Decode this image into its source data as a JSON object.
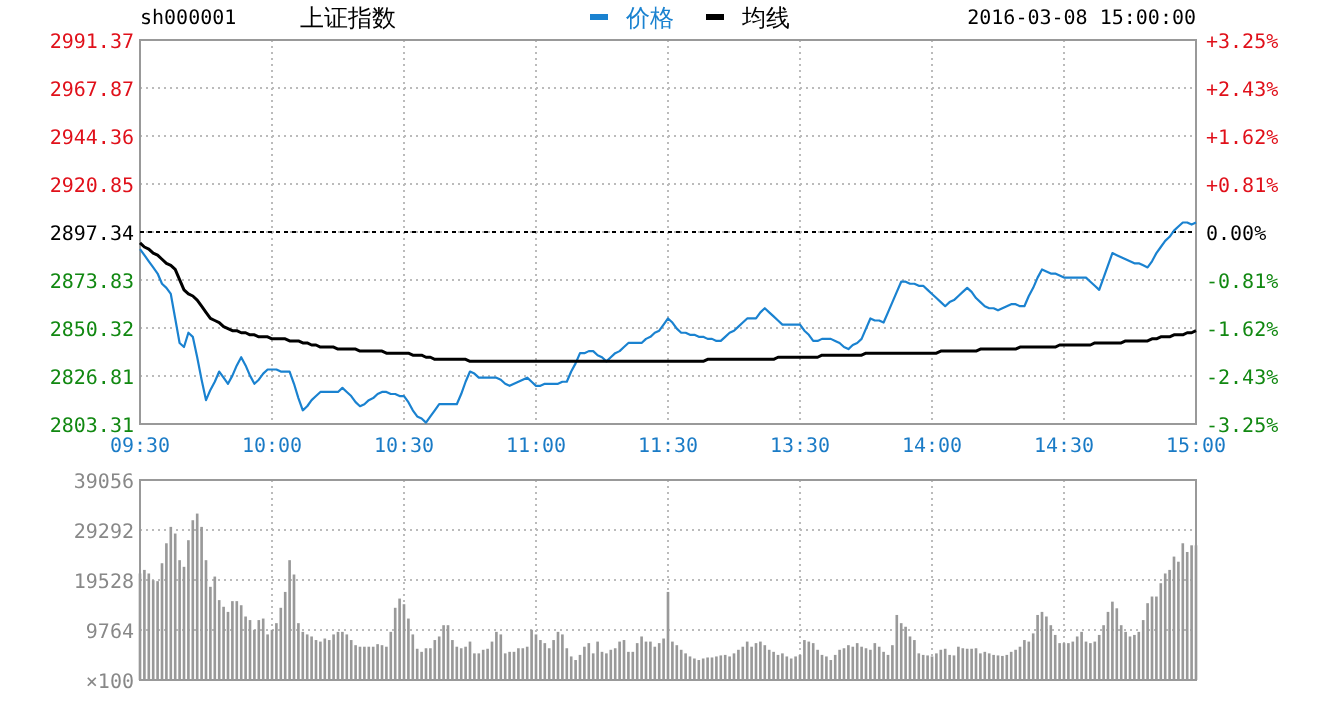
{
  "chart_data": [
    {
      "type": "line",
      "title": "上证指数",
      "subtitle": "sh000001",
      "annotations": [
        "2016-03-08 15:00:00"
      ],
      "legend": "top",
      "grid": true,
      "categories": [
        "09:30",
        null,
        null,
        null,
        null,
        null,
        null,
        null,
        null,
        null,
        null,
        null,
        null,
        null,
        null,
        null,
        null,
        null,
        null,
        null,
        null,
        null,
        null,
        null,
        null,
        null,
        null,
        null,
        null,
        null,
        "10:00",
        null,
        null,
        null,
        null,
        null,
        null,
        null,
        null,
        null,
        null,
        null,
        null,
        null,
        null,
        null,
        null,
        null,
        null,
        null,
        null,
        null,
        null,
        null,
        null,
        null,
        null,
        null,
        null,
        null,
        "10:30",
        null,
        null,
        null,
        null,
        null,
        null,
        null,
        null,
        null,
        null,
        null,
        null,
        null,
        null,
        null,
        null,
        null,
        null,
        null,
        null,
        null,
        null,
        null,
        null,
        null,
        null,
        null,
        null,
        null,
        "11:00",
        null,
        null,
        null,
        null,
        null,
        null,
        null,
        null,
        null,
        null,
        null,
        null,
        null,
        null,
        null,
        null,
        null,
        null,
        null,
        null,
        null,
        null,
        null,
        null,
        null,
        null,
        null,
        null,
        null,
        "11:30",
        null,
        null,
        null,
        null,
        null,
        null,
        null,
        null,
        null,
        null,
        null,
        null,
        null,
        null,
        null,
        null,
        null,
        null,
        null,
        null,
        null,
        null,
        null,
        null,
        null,
        null,
        null,
        null,
        null,
        "13:30",
        null,
        null,
        null,
        null,
        null,
        null,
        null,
        null,
        null,
        null,
        null,
        null,
        null,
        null,
        null,
        null,
        null,
        null,
        null,
        null,
        null,
        null,
        null,
        null,
        null,
        null,
        null,
        null,
        null,
        "14:00",
        null,
        null,
        null,
        null,
        null,
        null,
        null,
        null,
        null,
        null,
        null,
        null,
        null,
        null,
        null,
        null,
        null,
        null,
        null,
        null,
        null,
        null,
        null,
        null,
        null,
        null,
        null,
        null,
        null,
        "14:30",
        null,
        null,
        null,
        null,
        null,
        null,
        null,
        null,
        null,
        null,
        null,
        null,
        null,
        null,
        null,
        null,
        null,
        null,
        null,
        null,
        null,
        null,
        null,
        null,
        null,
        null,
        null,
        null,
        null,
        "15:00"
      ],
      "series": [
        {
          "name": "价格",
          "color": "#1a82d0",
          "values": [
            2889,
            2886,
            2883,
            2880,
            2877,
            2872,
            2870,
            2867,
            2855,
            2843,
            2841,
            2848,
            2846,
            2836,
            2825,
            2815,
            2820,
            2824,
            2829,
            2826,
            2823,
            2827,
            2832,
            2836,
            2832,
            2827,
            2823,
            2825,
            2828,
            2830,
            2830,
            2830,
            2829,
            2829,
            2829,
            2823,
            2816,
            2810,
            2812,
            2815,
            2817,
            2819,
            2819,
            2819,
            2819,
            2819,
            2821,
            2819,
            2817,
            2814,
            2812,
            2813,
            2815,
            2816,
            2818,
            2819,
            2819,
            2818,
            2818,
            2817,
            2817,
            2814,
            2810,
            2807,
            2806,
            2804,
            2807,
            2810,
            2813,
            2813,
            2813,
            2813,
            2813,
            2818,
            2824,
            2829,
            2828,
            2826,
            2826,
            2826,
            2826,
            2826,
            2825,
            2823,
            2822,
            2823,
            2824,
            2825,
            2826,
            2824,
            2822,
            2822,
            2823,
            2823,
            2823,
            2823,
            2824,
            2824,
            2829,
            2833,
            2838,
            2838,
            2839,
            2839,
            2837,
            2836,
            2834,
            2836,
            2838,
            2839,
            2841,
            2843,
            2843,
            2843,
            2843,
            2845,
            2846,
            2848,
            2849,
            2852,
            2855,
            2853,
            2850,
            2848,
            2848,
            2847,
            2847,
            2846,
            2846,
            2845,
            2845,
            2844,
            2844,
            2846,
            2848,
            2849,
            2851,
            2853,
            2855,
            2855,
            2855,
            2858,
            2860,
            2858,
            2856,
            2854,
            2852,
            2852,
            2852,
            2852,
            2852,
            2849,
            2847,
            2844,
            2844,
            2845,
            2845,
            2845,
            2844,
            2843,
            2841,
            2840,
            2842,
            2843,
            2845,
            2850,
            2855,
            2854,
            2854,
            2853,
            2858,
            2863,
            2868,
            2873,
            2873,
            2872,
            2872,
            2871,
            2871,
            2869,
            2867,
            2865,
            2863,
            2861,
            2863,
            2864,
            2866,
            2868,
            2870,
            2868,
            2865,
            2863,
            2861,
            2860,
            2860,
            2859,
            2860,
            2861,
            2862,
            2862,
            2861,
            2861,
            2866,
            2870,
            2875,
            2879,
            2878,
            2877,
            2877,
            2876,
            2875,
            2875,
            2875,
            2875,
            2875,
            2875,
            2873,
            2871,
            2869,
            2875,
            2881,
            2887,
            2886,
            2885,
            2884,
            2883,
            2882,
            2882,
            2881,
            2880,
            2883,
            2887,
            2890,
            2893,
            2895,
            2898,
            2900,
            2902,
            2902,
            2901,
            2902
          ]
        },
        {
          "name": "均线",
          "color": "#000000",
          "values": [
            2892,
            2890,
            2889,
            2887,
            2886,
            2884,
            2882,
            2881,
            2879,
            2874,
            2869,
            2867,
            2866,
            2864,
            2861,
            2858,
            2855,
            2854,
            2853,
            2851,
            2850,
            2849,
            2849,
            2848,
            2848,
            2847,
            2847,
            2846,
            2846,
            2846,
            2845,
            2845,
            2845,
            2845,
            2844,
            2844,
            2844,
            2843,
            2843,
            2842,
            2842,
            2841,
            2841,
            2841,
            2841,
            2840,
            2840,
            2840,
            2840,
            2840,
            2839,
            2839,
            2839,
            2839,
            2839,
            2839,
            2838,
            2838,
            2838,
            2838,
            2838,
            2838,
            2837,
            2837,
            2837,
            2836,
            2836,
            2835,
            2835,
            2835,
            2835,
            2835,
            2835,
            2835,
            2835,
            2834,
            2834,
            2834,
            2834,
            2834,
            2834,
            2834,
            2834,
            2834,
            2834,
            2834,
            2834,
            2834,
            2834,
            2834,
            2834,
            2834,
            2834,
            2834,
            2834,
            2834,
            2834,
            2834,
            2834,
            2834,
            2834,
            2834,
            2834,
            2834,
            2834,
            2834,
            2834,
            2834,
            2834,
            2834,
            2834,
            2834,
            2834,
            2834,
            2834,
            2834,
            2834,
            2834,
            2834,
            2834,
            2834,
            2834,
            2834,
            2834,
            2834,
            2834,
            2834,
            2834,
            2834,
            2835,
            2835,
            2835,
            2835,
            2835,
            2835,
            2835,
            2835,
            2835,
            2835,
            2835,
            2835,
            2835,
            2835,
            2835,
            2835,
            2836,
            2836,
            2836,
            2836,
            2836,
            2836,
            2836,
            2836,
            2836,
            2836,
            2837,
            2837,
            2837,
            2837,
            2837,
            2837,
            2837,
            2837,
            2837,
            2837,
            2838,
            2838,
            2838,
            2838,
            2838,
            2838,
            2838,
            2838,
            2838,
            2838,
            2838,
            2838,
            2838,
            2838,
            2838,
            2838,
            2838,
            2839,
            2839,
            2839,
            2839,
            2839,
            2839,
            2839,
            2839,
            2839,
            2840,
            2840,
            2840,
            2840,
            2840,
            2840,
            2840,
            2840,
            2840,
            2841,
            2841,
            2841,
            2841,
            2841,
            2841,
            2841,
            2841,
            2841,
            2842,
            2842,
            2842,
            2842,
            2842,
            2842,
            2842,
            2842,
            2843,
            2843,
            2843,
            2843,
            2843,
            2843,
            2843,
            2844,
            2844,
            2844,
            2844,
            2844,
            2844,
            2845,
            2845,
            2846,
            2846,
            2846,
            2847,
            2847,
            2847,
            2848,
            2848,
            2849
          ]
        }
      ],
      "ylim": [
        2803.31,
        2991.37
      ],
      "yticks": [
        2803.31,
        2826.81,
        2850.32,
        2873.83,
        2897.34,
        2920.85,
        2944.36,
        2967.87,
        2991.37
      ],
      "y2lim": [
        -3.25,
        3.25
      ],
      "y2ticks": [
        {
          "value": -3.25,
          "label": "-3.25%"
        },
        {
          "value": -2.43,
          "label": "-2.43%"
        },
        {
          "value": -1.62,
          "label": "-1.62%"
        },
        {
          "value": -0.81,
          "label": "-0.81%"
        },
        {
          "value": 0,
          "label": "0.00%"
        },
        {
          "value": 0.81,
          "label": "+0.81%"
        },
        {
          "value": 1.62,
          "label": "+1.62%"
        },
        {
          "value": 2.43,
          "label": "+2.43%"
        },
        {
          "value": 3.25,
          "label": "+3.25%"
        }
      ],
      "ref_lines": [
        {
          "axis": "y",
          "value": 2897.34,
          "color": "#000000",
          "line_style": "dashed"
        }
      ]
    },
    {
      "type": "bar",
      "color": "#999999",
      "grid": true,
      "tick_labels": "y",
      "ylabel": "×100",
      "categories": [
        null,
        null,
        null,
        null,
        null,
        null,
        null,
        null,
        null,
        null,
        null,
        null,
        null,
        null,
        null,
        null,
        null,
        null,
        null,
        null,
        null,
        null,
        null,
        null,
        null,
        null,
        null,
        null,
        null,
        null,
        null,
        null,
        null,
        null,
        null,
        null,
        null,
        null,
        null,
        null,
        null,
        null,
        null,
        null,
        null,
        null,
        null,
        null,
        null,
        null,
        null,
        null,
        null,
        null,
        null,
        null,
        null,
        null,
        null,
        null,
        null,
        null,
        null,
        null,
        null,
        null,
        null,
        null,
        null,
        null,
        null,
        null,
        null,
        null,
        null,
        null,
        null,
        null,
        null,
        null,
        null,
        null,
        null,
        null,
        null,
        null,
        null,
        null,
        null,
        null,
        null,
        null,
        null,
        null,
        null,
        null,
        null,
        null,
        null,
        null,
        null,
        null,
        null,
        null,
        null,
        null,
        null,
        null,
        null,
        null,
        null,
        null,
        null,
        null,
        null,
        null,
        null,
        null,
        null,
        null,
        null,
        null,
        null,
        null,
        null,
        null,
        null,
        null,
        null,
        null,
        null,
        null,
        null,
        null,
        null,
        null,
        null,
        null,
        null,
        null,
        null,
        null,
        null,
        null,
        null,
        null,
        null,
        null,
        null,
        null,
        null,
        null,
        null,
        null,
        null,
        null,
        null,
        null,
        null,
        null,
        null,
        null,
        null,
        null,
        null,
        null,
        null,
        null,
        null,
        null,
        null,
        null,
        null,
        null,
        null,
        null,
        null,
        null,
        null,
        null,
        null,
        null,
        null,
        null,
        null,
        null,
        null,
        null,
        null,
        null,
        null,
        null,
        null,
        null,
        null,
        null,
        null,
        null,
        null,
        null,
        null,
        null,
        null,
        null,
        null,
        null,
        null,
        null,
        null,
        null,
        null,
        null,
        null,
        null,
        null,
        null,
        null,
        null,
        null,
        null,
        null,
        null,
        null,
        null,
        null,
        null,
        null,
        null,
        null,
        null,
        null,
        null,
        null,
        null,
        null,
        null,
        null,
        null,
        null,
        null,
        null
      ],
      "values": [
        20800,
        21500,
        20800,
        19500,
        19300,
        22800,
        26700,
        29900,
        28600,
        23400,
        22100,
        27300,
        31200,
        32500,
        29900,
        23400,
        18200,
        20200,
        15600,
        14300,
        13300,
        15400,
        15400,
        14600,
        12400,
        11700,
        9800,
        11700,
        12000,
        8900,
        9800,
        11100,
        14100,
        17200,
        23400,
        20600,
        11100,
        9400,
        8900,
        8500,
        7800,
        7500,
        8100,
        7800,
        8900,
        9400,
        9400,
        8900,
        7800,
        6800,
        6500,
        6500,
        6500,
        6500,
        7000,
        6800,
        6500,
        9400,
        14100,
        15900,
        14800,
        12000,
        8900,
        6100,
        5500,
        6200,
        6200,
        7800,
        8500,
        10700,
        10700,
        7800,
        6500,
        6200,
        6500,
        7500,
        5200,
        5200,
        5900,
        6100,
        7500,
        9400,
        8900,
        5200,
        5500,
        5500,
        6200,
        6200,
        6500,
        9800,
        8900,
        7800,
        7200,
        6200,
        7800,
        9400,
        8900,
        6200,
        4600,
        3900,
        4900,
        6500,
        7200,
        5200,
        7500,
        5500,
        5200,
        5900,
        6200,
        7500,
        7800,
        5500,
        5500,
        7200,
        8500,
        7500,
        7500,
        6500,
        7200,
        8100,
        17200,
        7500,
        6800,
        5900,
        5200,
        4600,
        4200,
        3900,
        4200,
        4400,
        4400,
        4600,
        4800,
        4900,
        4600,
        5200,
        5900,
        6500,
        7500,
        6500,
        7200,
        7500,
        6800,
        5900,
        5500,
        4900,
        5200,
        4600,
        4200,
        4600,
        4900,
        7800,
        7500,
        7200,
        5900,
        4900,
        4600,
        3900,
        4900,
        5900,
        6200,
        6800,
        6500,
        7200,
        6500,
        6200,
        5900,
        7200,
        6500,
        5500,
        4900,
        6800,
        12700,
        11100,
        10400,
        8500,
        7800,
        5200,
        4900,
        4800,
        4600,
        5200,
        5900,
        6100,
        4900,
        4800,
        6500,
        6200,
        6100,
        6100,
        6200,
        5200,
        5500,
        5200,
        4900,
        4800,
        4700,
        4900,
        5500,
        5900,
        6500,
        7800,
        7500,
        9100,
        12700,
        13300,
        12400,
        10700,
        8800,
        7200,
        7200,
        7200,
        7500,
        8500,
        9400,
        7500,
        7200,
        7500,
        8800,
        10700,
        13300,
        15300,
        14000,
        10700,
        9400,
        8500,
        8800,
        9400,
        11700,
        15000,
        16300,
        16300,
        18900,
        20800,
        21500,
        24100,
        23100,
        26700,
        25000,
        26300,
        26300
      ],
      "ylim": [
        0,
        39056
      ],
      "yticks": [
        9764,
        19528,
        29292,
        39056
      ]
    }
  ]
}
